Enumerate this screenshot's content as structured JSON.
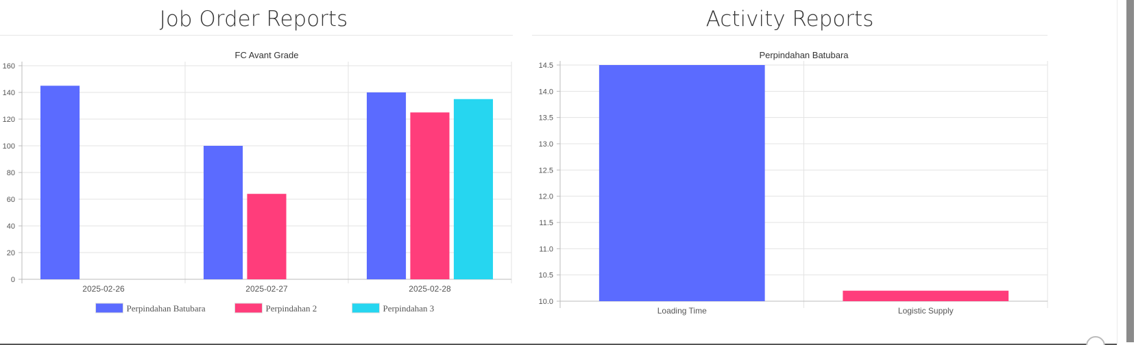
{
  "panels": {
    "left": {
      "title": "Job Order Reports"
    },
    "right": {
      "title": "Activity Reports"
    }
  },
  "colors": {
    "blue": "#5b6bff",
    "pink": "#ff3d7b",
    "cyan": "#26d6f0"
  },
  "chart_data": [
    {
      "type": "bar",
      "title": "FC Avant Grade",
      "xlabel": "",
      "ylabel": "",
      "categories": [
        "2025-02-26",
        "2025-02-27",
        "2025-02-28"
      ],
      "series": [
        {
          "name": "Perpindahan Batubara",
          "values": [
            145,
            100,
            140
          ],
          "color": "#5b6bff"
        },
        {
          "name": "Perpindahan 2",
          "values": [
            null,
            64,
            125
          ],
          "color": "#ff3d7b"
        },
        {
          "name": "Perpindahan 3",
          "values": [
            null,
            null,
            135
          ],
          "color": "#26d6f0"
        }
      ],
      "ylim": [
        0,
        160
      ],
      "yticks": [
        0,
        20,
        40,
        60,
        80,
        100,
        120,
        140,
        160
      ],
      "grid": true,
      "legend": "bottom"
    },
    {
      "type": "bar",
      "title": "Perpindahan Batubara",
      "xlabel": "",
      "ylabel": "",
      "categories": [
        "Loading Time",
        "Logistic Supply"
      ],
      "values": [
        14.5,
        10.2
      ],
      "colors": [
        "#5b6bff",
        "#ff3d7b"
      ],
      "ylim": [
        10.0,
        14.5
      ],
      "yticks": [
        "10.0",
        "10.5",
        "11.0",
        "11.5",
        "12.0",
        "12.5",
        "13.0",
        "13.5",
        "14.0",
        "14.5"
      ],
      "grid": true,
      "legend": "none"
    }
  ]
}
